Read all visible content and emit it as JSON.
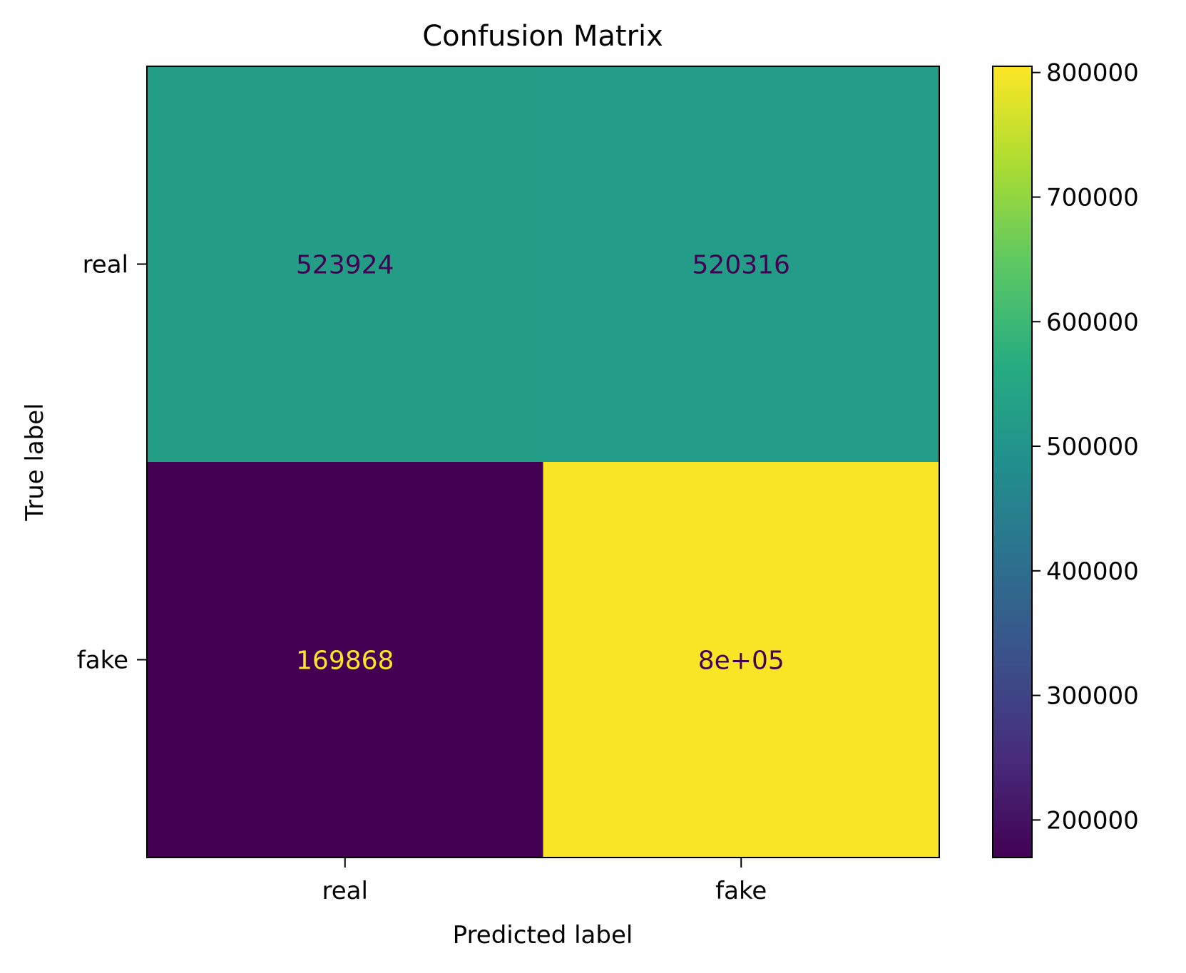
{
  "chart_data": {
    "type": "heatmap",
    "title": "Confusion Matrix",
    "xlabel": "Predicted label",
    "ylabel": "True label",
    "x_categories": [
      "real",
      "fake"
    ],
    "y_categories": [
      "real",
      "fake"
    ],
    "values": [
      [
        523924,
        520316
      ],
      [
        169868,
        800000
      ]
    ],
    "cell_labels": [
      [
        "523924",
        "520316"
      ],
      [
        "169868",
        "8e+05"
      ]
    ],
    "colorbar": {
      "range": [
        169868,
        805000
      ],
      "ticks": [
        200000,
        300000,
        400000,
        500000,
        600000,
        700000,
        800000
      ],
      "tick_labels": [
        "200000",
        "300000",
        "400000",
        "500000",
        "600000",
        "700000",
        "800000"
      ],
      "colormap": "viridis"
    },
    "colors": {
      "low_text": "#fde725",
      "high_text": "#440154",
      "axis": "#000000"
    }
  }
}
